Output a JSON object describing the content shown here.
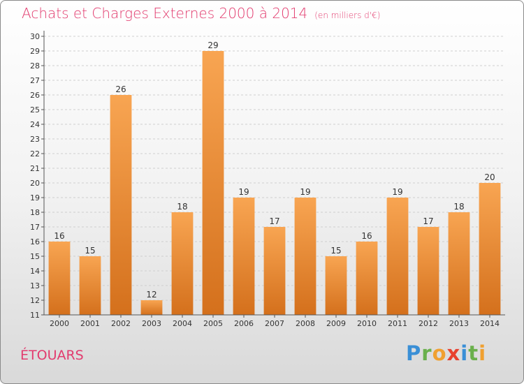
{
  "chart_data": {
    "type": "bar",
    "title": "Achats et Charges Externes 2000 à 2014",
    "subtitle": "(en milliers d'€)",
    "xlabel": "",
    "ylabel": "",
    "categories": [
      "2000",
      "2001",
      "2002",
      "2003",
      "2004",
      "2005",
      "2006",
      "2007",
      "2008",
      "2009",
      "2010",
      "2011",
      "2012",
      "2013",
      "2014"
    ],
    "values": [
      16,
      15,
      26,
      12,
      18,
      29,
      19,
      17,
      19,
      15,
      16,
      19,
      17,
      18,
      20
    ],
    "ylim": [
      11,
      30
    ],
    "yticks": [
      11,
      12,
      13,
      14,
      15,
      16,
      17,
      18,
      19,
      20,
      21,
      22,
      23,
      24,
      25,
      26,
      27,
      28,
      29,
      30
    ],
    "grid": true,
    "bar_color": "#f08c2d"
  },
  "place_name": "ÉTOUARS",
  "logo": {
    "letters": [
      "P",
      "r",
      "o",
      "x",
      "i",
      "t",
      "i"
    ],
    "colors": [
      "#3a8fd6",
      "#6ab04c",
      "#f0a030",
      "#e8412f",
      "#3a8fd6",
      "#6ab04c",
      "#f0a030"
    ]
  }
}
